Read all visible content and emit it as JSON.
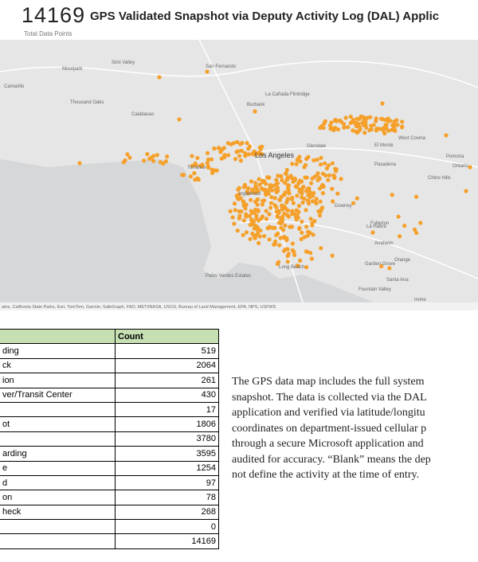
{
  "header": {
    "total": "14169",
    "title": "GPS Validated Snapshot via Deputy Activity Log (DAL) Applic",
    "subtitle": "Total Data Points"
  },
  "map": {
    "labels": [
      "San Fernando",
      "Simi Valley",
      "Moorpark",
      "Camarillo",
      "Thousand Oaks",
      "Calabasas",
      "Burbank",
      "La Cañada Flintridge",
      "Glendale",
      "Pasadena",
      "El Monte",
      "West Covina",
      "Pomona",
      "Ontario",
      "Chino Hills",
      "Los Angeles",
      "Inglewood",
      "Torrance",
      "Downey",
      "La Habra",
      "Fullerton",
      "Anaheim",
      "Orange",
      "Long Beach",
      "Garden Grove",
      "Santa Ana",
      "Fountain Valley",
      "Irvine",
      "Palos Verdes Estates"
    ],
    "attribution": "ates, California State Parks, Esri, TomTom, Garmin, SafeGraph, FAO, METI/NASA, USGS, Bureau of Land Management, EPA, NPS, USFWS"
  },
  "table": {
    "columns": [
      null,
      "Count"
    ],
    "rows": [
      [
        "ding",
        519
      ],
      [
        "ck",
        2064
      ],
      [
        "ion",
        261
      ],
      [
        "ver/Transit Center",
        430
      ],
      [
        null,
        17
      ],
      [
        "ot",
        1806
      ],
      [
        null,
        3780
      ],
      [
        "arding",
        3595
      ],
      [
        "e",
        1254
      ],
      [
        "d",
        97
      ],
      [
        "on",
        78
      ],
      [
        "heck",
        268
      ],
      [
        null,
        0
      ],
      [
        null,
        14169
      ]
    ]
  },
  "paragraph": {
    "lines": [
      "The GPS data map includes the full system",
      "snapshot. The data is collected via the DAL",
      "application and verified via latitude/longitu",
      "coordinates on department-issued cellular p",
      "through a secure Microsoft application and",
      "audited for accuracy. “Blank” means the dep",
      "not define the activity at the time of entry."
    ]
  }
}
